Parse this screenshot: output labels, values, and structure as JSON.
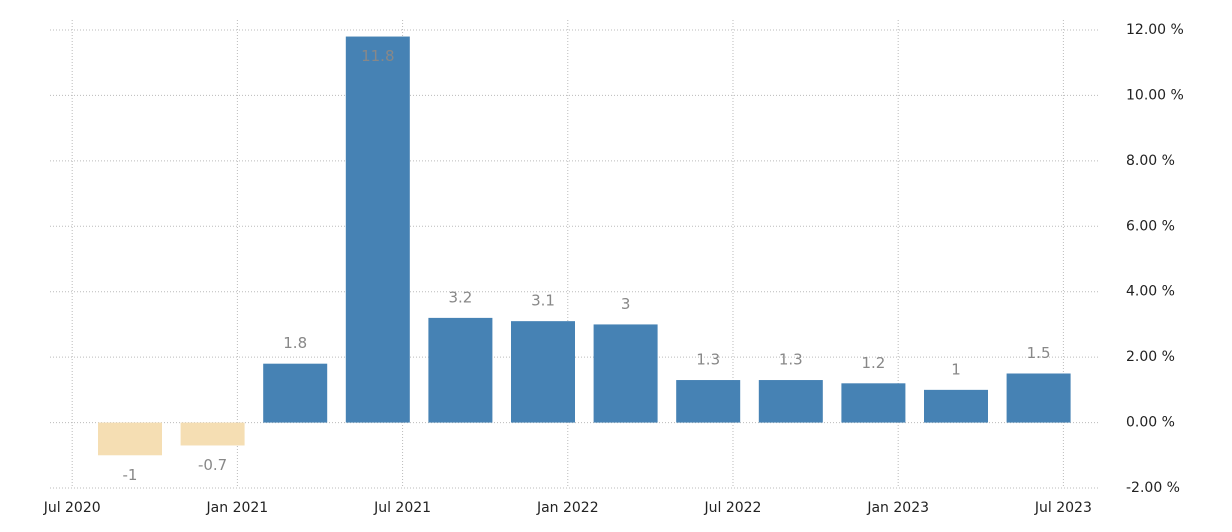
{
  "chart_data": {
    "type": "bar",
    "categories": [
      null,
      null,
      null,
      null,
      null,
      null,
      null,
      null,
      null,
      null,
      null,
      null
    ],
    "values": [
      -1,
      -0.7,
      1.8,
      11.8,
      3.2,
      3.1,
      3,
      1.3,
      1.3,
      1.2,
      1,
      1.5
    ],
    "color": "#4682b4",
    "negative_color": "#f5deb3",
    "x_labels": [
      "Jul 2020",
      "Jan 2021",
      "Jul 2021",
      "Jan 2022",
      "Jul 2022",
      "Jan 2023",
      "Jul 2023"
    ],
    "ylim": [
      -2,
      12
    ],
    "yticks": [
      {
        "value": -2,
        "label": "-2.00 %"
      },
      {
        "value": 0,
        "label": "0.00 %"
      },
      {
        "value": 2,
        "label": "2.00 %"
      },
      {
        "value": 4,
        "label": "4.00 %"
      },
      {
        "value": 6,
        "label": "6.00 %"
      },
      {
        "value": 8,
        "label": "8.00 %"
      },
      {
        "value": 10,
        "label": "10.00 %"
      },
      {
        "value": 12,
        "label": "12.00 %"
      }
    ],
    "grid": true
  }
}
